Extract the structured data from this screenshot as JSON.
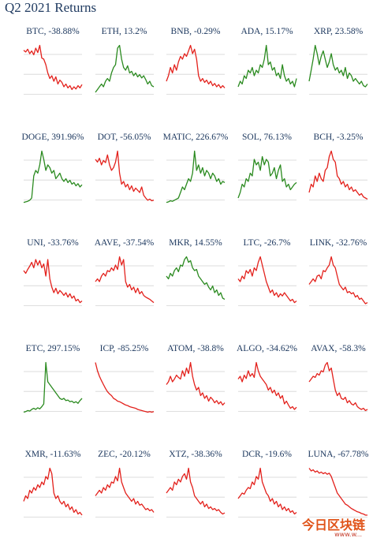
{
  "page": {
    "title": "Q2 2021 Returns"
  },
  "colors": {
    "negative": "#e3211c",
    "positive": "#2a8a1f",
    "grid": "#d3d3d3",
    "title": "#1f3a60"
  },
  "watermark": {
    "text": "今日区块链",
    "subtext": "www.w..."
  },
  "chart_data": [
    {
      "type": "line",
      "title": "BTC, -38.88%",
      "name": "BTC",
      "return_pct": -38.88,
      "values": [
        0.86,
        0.83,
        0.88,
        0.8,
        0.85,
        0.78,
        0.9,
        0.82,
        0.95,
        0.72,
        0.7,
        0.6,
        0.45,
        0.35,
        0.4,
        0.3,
        0.38,
        0.25,
        0.32,
        0.28,
        0.2,
        0.25,
        0.18,
        0.22,
        0.15,
        0.2,
        0.16,
        0.22,
        0.18,
        0.24
      ]
    },
    {
      "type": "line",
      "title": "ETH, 13.2%",
      "name": "ETH",
      "return_pct": 13.2,
      "values": [
        0.1,
        0.15,
        0.2,
        0.25,
        0.2,
        0.3,
        0.35,
        0.3,
        0.45,
        0.55,
        0.6,
        0.9,
        0.95,
        0.7,
        0.55,
        0.5,
        0.58,
        0.45,
        0.48,
        0.4,
        0.45,
        0.38,
        0.42,
        0.36,
        0.4,
        0.33,
        0.25,
        0.3,
        0.22,
        0.2
      ]
    },
    {
      "type": "line",
      "title": "BNB, -0.29%",
      "name": "BNB",
      "return_pct": -0.29,
      "values": [
        0.3,
        0.4,
        0.55,
        0.45,
        0.6,
        0.5,
        0.65,
        0.75,
        0.7,
        0.8,
        0.75,
        0.85,
        0.95,
        0.8,
        0.88,
        0.7,
        0.4,
        0.3,
        0.35,
        0.28,
        0.32,
        0.25,
        0.3,
        0.22,
        0.26,
        0.2,
        0.24,
        0.18,
        0.22,
        0.18
      ]
    },
    {
      "type": "line",
      "title": "ADA, 15.17%",
      "name": "ADA",
      "return_pct": 15.17,
      "values": [
        0.2,
        0.3,
        0.25,
        0.4,
        0.35,
        0.5,
        0.45,
        0.55,
        0.4,
        0.5,
        0.45,
        0.6,
        0.55,
        0.7,
        0.95,
        0.6,
        0.65,
        0.5,
        0.55,
        0.4,
        0.45,
        0.35,
        0.6,
        0.4,
        0.3,
        0.35,
        0.25,
        0.3,
        0.2,
        0.35
      ]
    },
    {
      "type": "line",
      "title": "XRP, 23.58%",
      "name": "XRP",
      "return_pct": 23.58,
      "values": [
        0.3,
        0.5,
        0.7,
        0.95,
        0.8,
        0.6,
        0.75,
        0.85,
        0.7,
        0.55,
        0.65,
        0.8,
        0.6,
        0.5,
        0.55,
        0.45,
        0.5,
        0.4,
        0.55,
        0.35,
        0.45,
        0.4,
        0.3,
        0.35,
        0.3,
        0.25,
        0.3,
        0.22,
        0.2,
        0.25
      ]
    },
    {
      "type": "line",
      "title": "DOGE, 391.96%",
      "name": "DOGE",
      "return_pct": 391.96,
      "values": [
        0.02,
        0.03,
        0.04,
        0.06,
        0.1,
        0.5,
        0.6,
        0.55,
        0.7,
        0.95,
        0.8,
        0.6,
        0.7,
        0.65,
        0.55,
        0.6,
        0.45,
        0.5,
        0.55,
        0.45,
        0.4,
        0.45,
        0.38,
        0.42,
        0.35,
        0.38,
        0.32,
        0.36,
        0.3,
        0.34
      ]
    },
    {
      "type": "line",
      "title": "DOT, -56.05%",
      "name": "DOT",
      "return_pct": -56.05,
      "values": [
        0.8,
        0.75,
        0.82,
        0.7,
        0.78,
        0.74,
        0.88,
        0.7,
        0.6,
        0.65,
        0.75,
        0.95,
        0.55,
        0.35,
        0.4,
        0.3,
        0.35,
        0.25,
        0.32,
        0.22,
        0.28,
        0.24,
        0.2,
        0.3,
        0.15,
        0.1,
        0.06,
        0.08,
        0.05,
        0.06
      ]
    },
    {
      "type": "line",
      "title": "MATIC, 226.67%",
      "name": "MATIC",
      "return_pct": 226.67,
      "values": [
        0.02,
        0.03,
        0.05,
        0.04,
        0.06,
        0.08,
        0.1,
        0.2,
        0.3,
        0.25,
        0.35,
        0.45,
        0.4,
        0.55,
        0.95,
        0.6,
        0.7,
        0.55,
        0.65,
        0.5,
        0.6,
        0.55,
        0.45,
        0.55,
        0.5,
        0.4,
        0.45,
        0.35,
        0.4,
        0.38
      ]
    },
    {
      "type": "line",
      "title": "SOL, 76.13%",
      "name": "SOL",
      "return_pct": 76.13,
      "values": [
        0.1,
        0.2,
        0.35,
        0.3,
        0.45,
        0.4,
        0.55,
        0.5,
        0.8,
        0.7,
        0.75,
        0.6,
        0.85,
        0.7,
        0.8,
        0.75,
        0.5,
        0.55,
        0.65,
        0.45,
        0.6,
        0.7,
        0.4,
        0.45,
        0.3,
        0.35,
        0.25,
        0.3,
        0.35,
        0.38
      ]
    },
    {
      "type": "line",
      "title": "BCH, -3.25%",
      "name": "BCH",
      "return_pct": -3.25,
      "values": [
        0.2,
        0.35,
        0.3,
        0.5,
        0.4,
        0.55,
        0.45,
        0.4,
        0.6,
        0.65,
        0.85,
        0.95,
        0.8,
        0.75,
        0.5,
        0.45,
        0.35,
        0.4,
        0.3,
        0.35,
        0.25,
        0.3,
        0.22,
        0.25,
        0.2,
        0.15,
        0.18,
        0.12,
        0.1,
        0.08
      ]
    },
    {
      "type": "line",
      "title": "UNI, -33.76%",
      "name": "UNI",
      "return_pct": -33.76,
      "values": [
        0.7,
        0.65,
        0.72,
        0.78,
        0.85,
        0.75,
        0.9,
        0.8,
        0.88,
        0.75,
        0.82,
        0.6,
        0.9,
        0.55,
        0.4,
        0.3,
        0.38,
        0.28,
        0.34,
        0.3,
        0.25,
        0.3,
        0.22,
        0.28,
        0.2,
        0.24,
        0.15,
        0.18,
        0.12,
        0.15
      ]
    },
    {
      "type": "line",
      "title": "AAVE, -37.54%",
      "name": "AAVE",
      "return_pct": -37.54,
      "values": [
        0.5,
        0.55,
        0.5,
        0.6,
        0.65,
        0.6,
        0.7,
        0.68,
        0.75,
        0.7,
        0.8,
        0.72,
        0.95,
        0.8,
        0.9,
        0.5,
        0.4,
        0.45,
        0.35,
        0.4,
        0.3,
        0.38,
        0.28,
        0.32,
        0.25,
        0.22,
        0.2,
        0.18,
        0.15,
        0.12
      ]
    },
    {
      "type": "line",
      "title": "MKR, 14.55%",
      "name": "MKR",
      "return_pct": 14.55,
      "values": [
        0.6,
        0.55,
        0.65,
        0.6,
        0.7,
        0.75,
        0.68,
        0.8,
        0.78,
        0.9,
        0.95,
        0.85,
        0.88,
        0.75,
        0.7,
        0.72,
        0.6,
        0.55,
        0.5,
        0.45,
        0.48,
        0.4,
        0.35,
        0.42,
        0.3,
        0.35,
        0.25,
        0.3,
        0.2,
        0.18
      ]
    },
    {
      "type": "line",
      "title": "LTC, -26.7%",
      "name": "LTC",
      "return_pct": -26.7,
      "values": [
        0.55,
        0.5,
        0.6,
        0.55,
        0.7,
        0.65,
        0.72,
        0.6,
        0.75,
        0.7,
        0.85,
        0.95,
        0.8,
        0.65,
        0.5,
        0.4,
        0.3,
        0.35,
        0.25,
        0.3,
        0.22,
        0.28,
        0.24,
        0.3,
        0.25,
        0.2,
        0.15,
        0.18,
        0.12,
        0.15
      ]
    },
    {
      "type": "line",
      "title": "LINK, -32.76%",
      "name": "LINK",
      "return_pct": -32.76,
      "values": [
        0.45,
        0.5,
        0.55,
        0.5,
        0.6,
        0.62,
        0.55,
        0.7,
        0.68,
        0.75,
        0.8,
        0.95,
        0.8,
        0.75,
        0.6,
        0.45,
        0.4,
        0.35,
        0.4,
        0.3,
        0.32,
        0.28,
        0.3,
        0.22,
        0.25,
        0.18,
        0.2,
        0.15,
        0.1,
        0.12
      ]
    },
    {
      "type": "line",
      "title": "ETC, 297.15%",
      "name": "ETC",
      "return_pct": 297.15,
      "values": [
        0.05,
        0.06,
        0.08,
        0.07,
        0.1,
        0.12,
        0.1,
        0.13,
        0.11,
        0.15,
        0.2,
        0.95,
        0.6,
        0.55,
        0.5,
        0.45,
        0.4,
        0.35,
        0.3,
        0.28,
        0.3,
        0.26,
        0.27,
        0.24,
        0.25,
        0.22,
        0.24,
        0.21,
        0.26,
        0.3
      ]
    },
    {
      "type": "line",
      "title": "ICP, -85.25%",
      "name": "ICP",
      "return_pct": -85.25,
      "values": [
        0.95,
        0.8,
        0.7,
        0.62,
        0.55,
        0.48,
        0.42,
        0.38,
        0.35,
        0.3,
        0.28,
        0.25,
        0.24,
        0.22,
        0.2,
        0.18,
        0.17,
        0.15,
        0.14,
        0.13,
        0.12,
        0.1,
        0.09,
        0.08,
        0.07,
        0.06,
        0.05,
        0.06,
        0.05,
        0.06
      ]
    },
    {
      "type": "line",
      "title": "ATOM, -38.8%",
      "name": "ATOM",
      "return_pct": -38.8,
      "values": [
        0.55,
        0.6,
        0.7,
        0.6,
        0.65,
        0.72,
        0.68,
        0.65,
        0.8,
        0.7,
        0.85,
        0.75,
        0.95,
        0.7,
        0.55,
        0.45,
        0.5,
        0.35,
        0.4,
        0.3,
        0.35,
        0.25,
        0.32,
        0.28,
        0.22,
        0.26,
        0.2,
        0.24,
        0.18,
        0.22
      ]
    },
    {
      "type": "line",
      "title": "ALGO, -34.62%",
      "name": "ALGO",
      "return_pct": -34.62,
      "values": [
        0.65,
        0.7,
        0.6,
        0.72,
        0.66,
        0.8,
        0.7,
        0.75,
        0.68,
        0.95,
        0.8,
        0.7,
        0.65,
        0.6,
        0.55,
        0.45,
        0.5,
        0.4,
        0.45,
        0.35,
        0.4,
        0.3,
        0.35,
        0.2,
        0.25,
        0.18,
        0.12,
        0.15,
        0.1,
        0.14
      ]
    },
    {
      "type": "line",
      "title": "AVAX, -58.3%",
      "name": "AVAX",
      "return_pct": -58.3,
      "values": [
        0.6,
        0.65,
        0.7,
        0.68,
        0.75,
        0.72,
        0.8,
        0.78,
        0.9,
        0.95,
        0.8,
        0.85,
        0.65,
        0.45,
        0.35,
        0.4,
        0.3,
        0.28,
        0.32,
        0.22,
        0.26,
        0.2,
        0.18,
        0.22,
        0.15,
        0.12,
        0.1,
        0.12,
        0.08,
        0.1
      ]
    },
    {
      "type": "line",
      "title": "XMR, -11.63%",
      "name": "XMR",
      "return_pct": -11.63,
      "values": [
        0.35,
        0.45,
        0.4,
        0.55,
        0.5,
        0.6,
        0.55,
        0.65,
        0.6,
        0.7,
        0.65,
        0.8,
        0.75,
        0.95,
        0.85,
        0.5,
        0.4,
        0.45,
        0.35,
        0.3,
        0.35,
        0.25,
        0.3,
        0.2,
        0.25,
        0.15,
        0.2,
        0.12,
        0.15,
        0.1
      ]
    },
    {
      "type": "line",
      "title": "ZEC, -20.12%",
      "name": "ZEC",
      "return_pct": -20.12,
      "values": [
        0.45,
        0.5,
        0.55,
        0.5,
        0.6,
        0.55,
        0.65,
        0.6,
        0.7,
        0.68,
        0.8,
        0.72,
        0.95,
        0.7,
        0.6,
        0.5,
        0.45,
        0.4,
        0.35,
        0.4,
        0.3,
        0.35,
        0.28,
        0.3,
        0.25,
        0.2,
        0.22,
        0.18,
        0.2,
        0.15
      ]
    },
    {
      "type": "line",
      "title": "XTZ, -38.36%",
      "name": "XTZ",
      "return_pct": -38.36,
      "values": [
        0.5,
        0.55,
        0.6,
        0.55,
        0.7,
        0.65,
        0.75,
        0.7,
        0.8,
        0.85,
        0.75,
        0.95,
        0.7,
        0.6,
        0.45,
        0.4,
        0.35,
        0.3,
        0.35,
        0.25,
        0.3,
        0.22,
        0.25,
        0.2,
        0.22,
        0.18,
        0.2,
        0.15,
        0.12,
        0.14
      ]
    },
    {
      "type": "line",
      "title": "DCR, -19.6%",
      "name": "DCR",
      "return_pct": -19.6,
      "values": [
        0.4,
        0.45,
        0.5,
        0.48,
        0.55,
        0.6,
        0.58,
        0.7,
        0.65,
        0.8,
        0.75,
        0.95,
        0.7,
        0.6,
        0.5,
        0.45,
        0.35,
        0.4,
        0.3,
        0.35,
        0.25,
        0.3,
        0.2,
        0.25,
        0.18,
        0.22,
        0.15,
        0.18,
        0.12,
        0.15
      ]
    },
    {
      "type": "line",
      "title": "LUNA, -67.78%",
      "name": "LUNA",
      "return_pct": -67.78,
      "values": [
        0.95,
        0.9,
        0.92,
        0.88,
        0.9,
        0.86,
        0.88,
        0.85,
        0.87,
        0.84,
        0.86,
        0.8,
        0.7,
        0.6,
        0.5,
        0.45,
        0.4,
        0.35,
        0.3,
        0.28,
        0.25,
        0.22,
        0.2,
        0.18,
        0.16,
        0.15,
        0.13,
        0.12,
        0.1,
        0.1
      ]
    }
  ]
}
